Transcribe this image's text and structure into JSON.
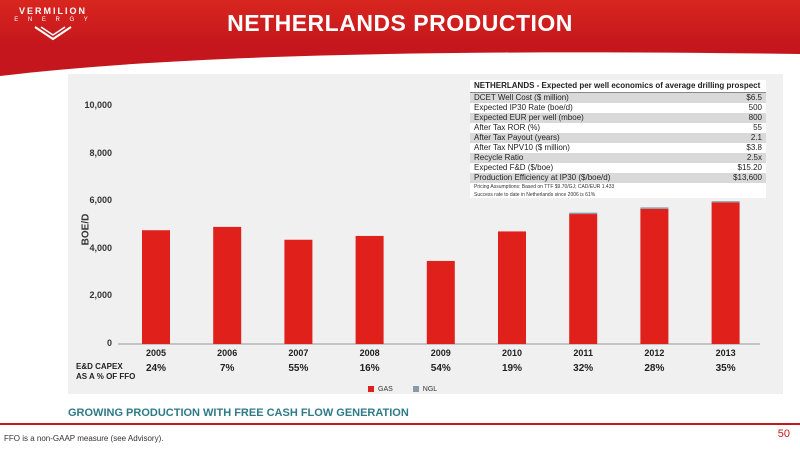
{
  "logo": {
    "word1": "VERMILION",
    "word2": "E N E R G Y"
  },
  "title": "NETHERLANDS PRODUCTION",
  "econ_table": {
    "header": "NETHERLANDS - Expected per well economics of average drilling prospect",
    "rows": [
      {
        "label": "DCET Well Cost ($ million)",
        "value": "$6.5"
      },
      {
        "label": "Expected IP30 Rate (boe/d)",
        "value": "500"
      },
      {
        "label": "Expected EUR per well (mboe)",
        "value": "800"
      },
      {
        "label": "After Tax ROR (%)",
        "value": "55"
      },
      {
        "label": "After Tax Payout (years)",
        "value": "2.1"
      },
      {
        "label": "After Tax NPV10 ($ million)",
        "value": "$3.8"
      },
      {
        "label": "Recycle Ratio",
        "value": "2.5x"
      },
      {
        "label": "Expected F&D ($/boe)",
        "value": "$15.20"
      },
      {
        "label": "Production Efficiency at IP30 ($/boe/d)",
        "value": "$13,600"
      }
    ],
    "note1": "Pricing Assumptions: Based on TTF $9.70/GJ; CAD/EUR 1.433",
    "note2": "Success rate to date in Netherlands since 2006 is 61%"
  },
  "capex_label_line1": "E&D CAPEX",
  "capex_label_line2": "AS A % OF FFO",
  "capex_values": [
    "24%",
    "7%",
    "55%",
    "16%",
    "54%",
    "19%",
    "32%",
    "28%",
    "35%"
  ],
  "tagline": "GROWING PRODUCTION WITH FREE CASH FLOW GENERATION",
  "footnote": "FFO is a non-GAAP measure (see Advisory).",
  "page_number": "50",
  "colors": {
    "brand_red": "#c4161c",
    "gas": "#e0201b",
    "ngl": "#8a9ba8",
    "tagline": "#2f7a87"
  },
  "chart_data": {
    "type": "bar",
    "stacked": true,
    "categories": [
      "2005",
      "2006",
      "2007",
      "2008",
      "2009",
      "2010",
      "2011",
      "2012",
      "2013"
    ],
    "series": [
      {
        "name": "GAS",
        "values": [
          4780,
          4920,
          4380,
          4540,
          3490,
          4730,
          5460,
          5680,
          5950
        ]
      },
      {
        "name": "NGL",
        "values": [
          0,
          0,
          0,
          0,
          0,
          0,
          60,
          60,
          50
        ]
      }
    ],
    "ylabel": "BOE/D",
    "xlabel": "",
    "ylim": [
      0,
      10000
    ],
    "yticks": [
      0,
      2000,
      4000,
      6000,
      8000,
      10000
    ],
    "ytick_labels": [
      "0",
      "2,000",
      "4,000",
      "6,000",
      "8,000",
      "10,000"
    ],
    "legend_position": "bottom-center",
    "grid": false
  }
}
